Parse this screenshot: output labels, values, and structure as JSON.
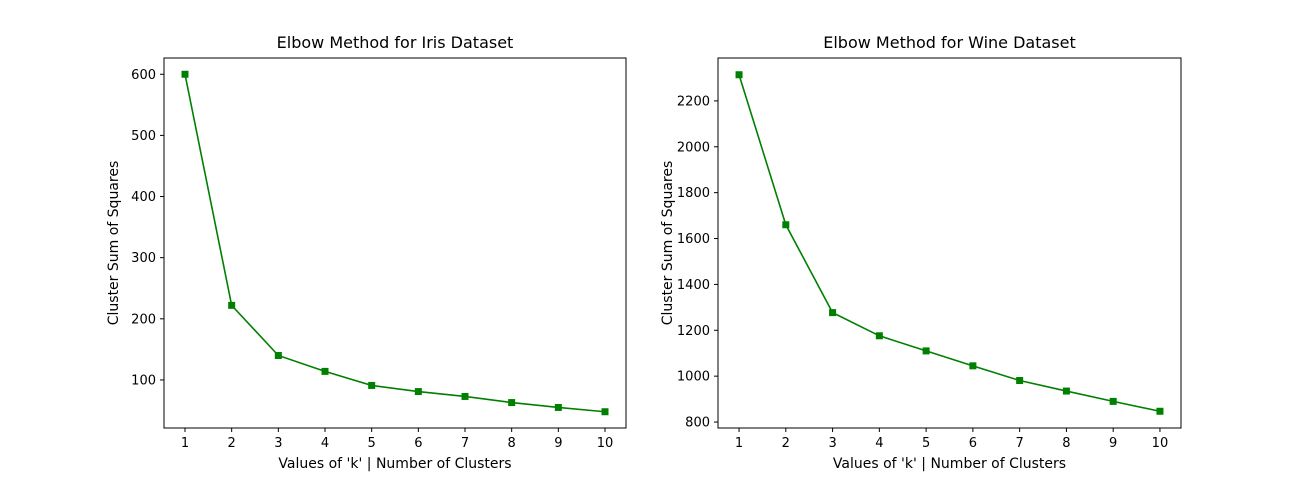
{
  "chart_data": [
    {
      "type": "line",
      "title": "Elbow Method for Iris Dataset",
      "xlabel": "Values of 'k' | Number of Clusters",
      "ylabel": "Cluster Sum of Squares",
      "x": [
        1,
        2,
        3,
        4,
        5,
        6,
        7,
        8,
        9,
        10
      ],
      "series": [
        {
          "values": [
            600,
            222,
            140,
            114,
            91,
            81,
            73,
            63,
            55,
            48
          ],
          "color": "#008000",
          "marker": "square"
        }
      ],
      "xticks": [
        "1",
        "2",
        "3",
        "4",
        "5",
        "6",
        "7",
        "8",
        "9",
        "10"
      ],
      "yticks": [
        100,
        200,
        300,
        400,
        500,
        600
      ],
      "xlim": [
        0.55,
        10.45
      ],
      "ylim": [
        21.4,
        626.6
      ],
      "grid": false
    },
    {
      "type": "line",
      "title": "Elbow Method for Wine Dataset",
      "xlabel": "Values of 'k' | Number of Clusters",
      "ylabel": "Cluster Sum of Squares",
      "x": [
        1,
        2,
        3,
        4,
        5,
        6,
        7,
        8,
        9,
        10
      ],
      "series": [
        {
          "values": [
            2314,
            1660,
            1277,
            1176,
            1110,
            1045,
            981,
            935,
            890,
            847
          ],
          "color": "#008000",
          "marker": "square"
        }
      ],
      "xticks": [
        "1",
        "2",
        "3",
        "4",
        "5",
        "6",
        "7",
        "8",
        "9",
        "10"
      ],
      "yticks": [
        800,
        1000,
        1200,
        1400,
        1600,
        1800,
        2000,
        2200
      ],
      "xlim": [
        0.55,
        10.45
      ],
      "ylim": [
        774,
        2387
      ],
      "grid": false
    }
  ]
}
